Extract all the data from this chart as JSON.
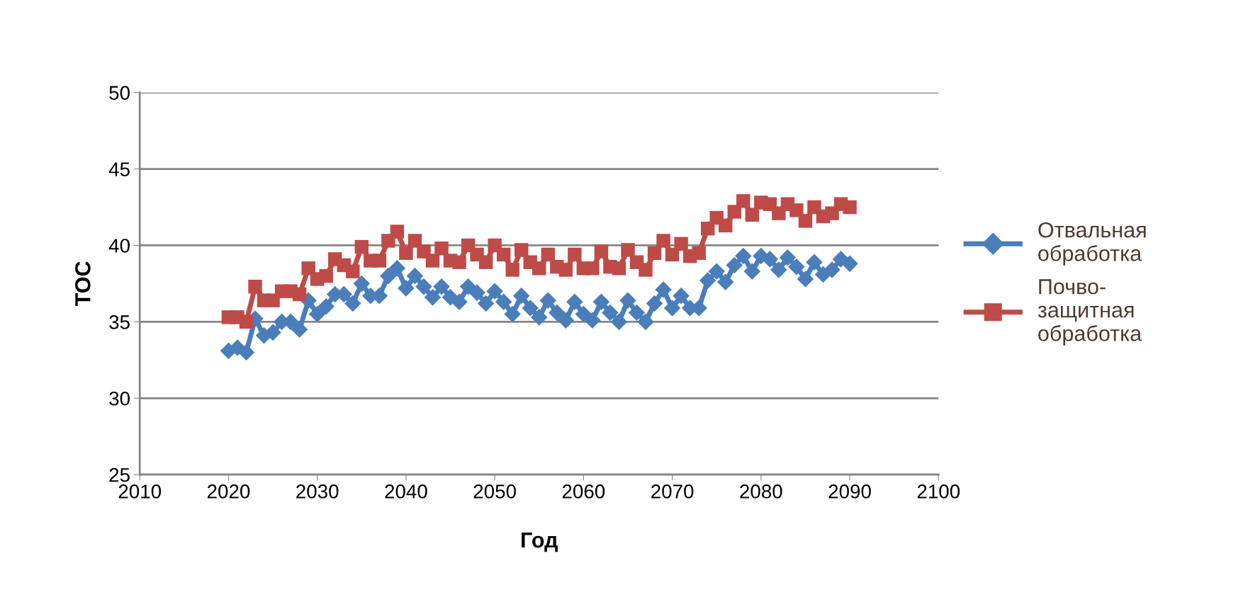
{
  "chart_data": {
    "type": "line",
    "xlabel": "Год",
    "ylabel": "TOC",
    "xlim": [
      2010,
      2100
    ],
    "xticks": [
      2010,
      2020,
      2030,
      2040,
      2050,
      2060,
      2070,
      2080,
      2090,
      2100
    ],
    "ylim": [
      25,
      50
    ],
    "yticks": [
      25,
      30,
      35,
      40,
      45,
      50
    ],
    "grid": "y",
    "legend": "right",
    "x": [
      2020,
      2021,
      2022,
      2023,
      2024,
      2025,
      2026,
      2027,
      2028,
      2029,
      2030,
      2031,
      2032,
      2033,
      2034,
      2035,
      2036,
      2037,
      2038,
      2039,
      2040,
      2041,
      2042,
      2043,
      2044,
      2045,
      2046,
      2047,
      2048,
      2049,
      2050,
      2051,
      2052,
      2053,
      2054,
      2055,
      2056,
      2057,
      2058,
      2059,
      2060,
      2061,
      2062,
      2063,
      2064,
      2065,
      2066,
      2067,
      2068,
      2069,
      2070,
      2071,
      2072,
      2073,
      2074,
      2075,
      2076,
      2077,
      2078,
      2079,
      2080,
      2081,
      2082,
      2083,
      2084,
      2085,
      2086,
      2087,
      2088,
      2089,
      2090
    ],
    "series": [
      {
        "name": "Отвальная обработка",
        "color": "#4a7ebb",
        "marker": "diamond",
        "values": [
          33.1,
          33.3,
          33.0,
          35.2,
          34.1,
          34.3,
          35.0,
          35.0,
          34.5,
          36.4,
          35.5,
          36.0,
          36.8,
          36.8,
          36.2,
          37.5,
          36.7,
          36.7,
          38.0,
          38.5,
          37.2,
          38.0,
          37.3,
          36.6,
          37.3,
          36.6,
          36.3,
          37.3,
          36.9,
          36.2,
          37.0,
          36.3,
          35.5,
          36.7,
          35.9,
          35.3,
          36.4,
          35.6,
          35.1,
          36.3,
          35.5,
          35.1,
          36.3,
          35.6,
          35.0,
          36.4,
          35.6,
          35.0,
          36.2,
          37.1,
          35.9,
          36.7,
          35.9,
          35.9,
          37.7,
          38.3,
          37.6,
          38.7,
          39.3,
          38.3,
          39.3,
          39.1,
          38.4,
          39.2,
          38.6,
          37.8,
          38.9,
          38.1,
          38.4,
          39.1,
          38.8
        ]
      },
      {
        "name": "Почво-защитная обработка",
        "color": "#be4b48",
        "marker": "square",
        "values": [
          35.3,
          35.3,
          35.0,
          37.3,
          36.4,
          36.4,
          37.0,
          37.0,
          36.8,
          38.5,
          37.8,
          38.0,
          39.1,
          38.7,
          38.3,
          39.9,
          39.0,
          39.0,
          40.3,
          40.9,
          39.5,
          40.3,
          39.6,
          39.0,
          39.8,
          39.0,
          38.9,
          40.0,
          39.4,
          38.9,
          40.0,
          39.4,
          38.4,
          39.7,
          38.9,
          38.5,
          39.4,
          38.6,
          38.4,
          39.4,
          38.5,
          38.5,
          39.6,
          38.6,
          38.5,
          39.7,
          38.9,
          38.4,
          39.5,
          40.3,
          39.4,
          40.1,
          39.3,
          39.5,
          41.1,
          41.8,
          41.3,
          42.2,
          42.9,
          42.0,
          42.8,
          42.7,
          42.1,
          42.7,
          42.3,
          41.6,
          42.5,
          41.9,
          42.1,
          42.7,
          42.5
        ]
      }
    ]
  }
}
